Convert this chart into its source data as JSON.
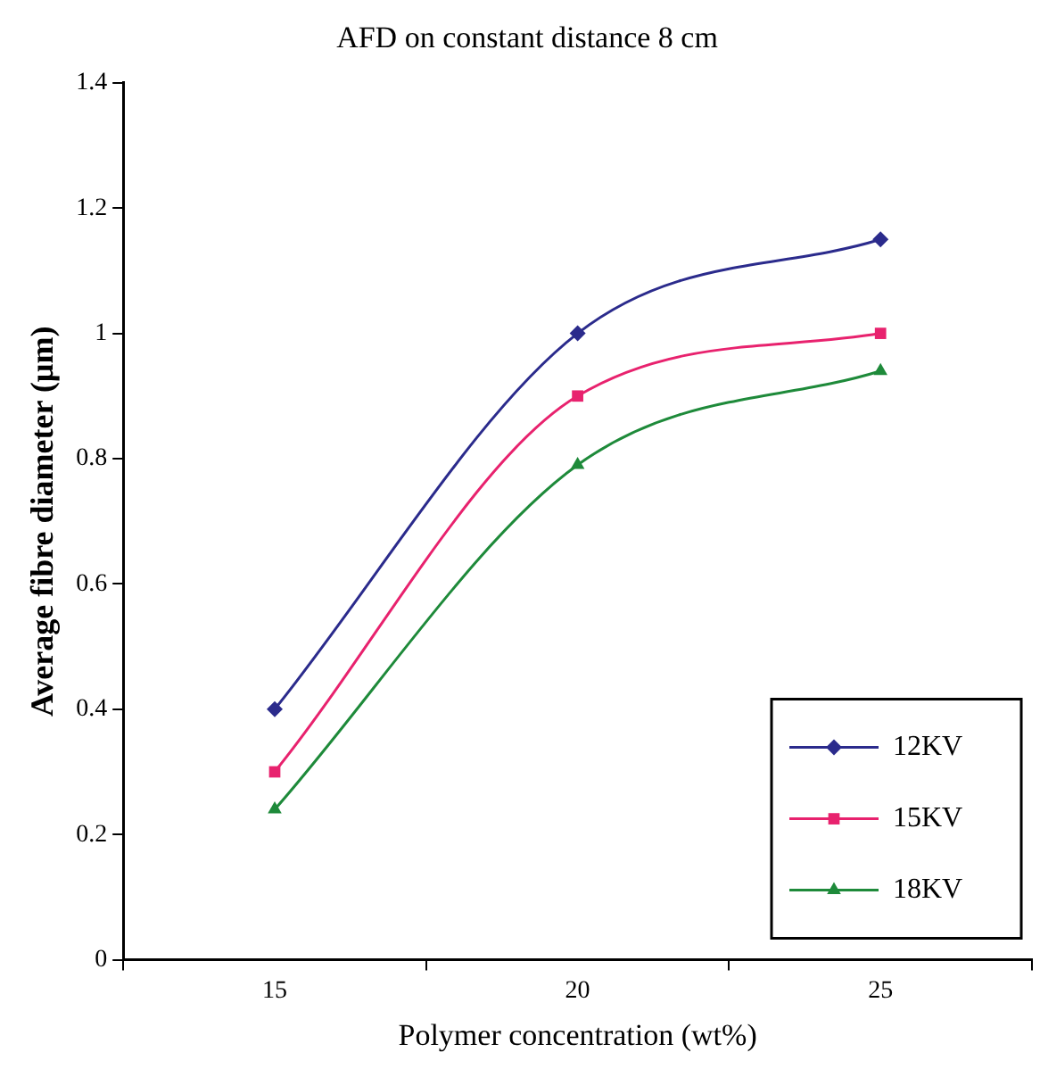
{
  "chart_data": {
    "type": "line",
    "title": "AFD on constant distance 8 cm",
    "xlabel": "Polymer concentration (wt%)",
    "ylabel": "Average fibre diameter (µm)",
    "categories": [
      "15",
      "20",
      "25"
    ],
    "series": [
      {
        "name": "12KV",
        "color": "#2b2b8c",
        "marker": "diamond",
        "values": [
          0.4,
          1.0,
          1.15
        ]
      },
      {
        "name": "15KV",
        "color": "#e8226e",
        "marker": "square",
        "values": [
          0.3,
          0.9,
          1.0
        ]
      },
      {
        "name": "18KV",
        "color": "#1e8a3a",
        "marker": "triangle",
        "values": [
          0.24,
          0.79,
          0.94
        ]
      }
    ],
    "ylim": [
      0,
      1.4
    ],
    "yticks": [
      0,
      0.2,
      0.4,
      0.6,
      0.8,
      1,
      1.2,
      1.4
    ],
    "grid": false,
    "legend": "bottom right",
    "line_style": "solid"
  }
}
